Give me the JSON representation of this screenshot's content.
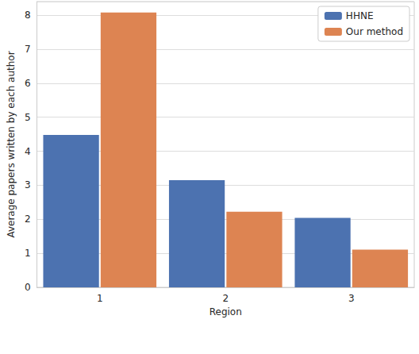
{
  "chart_data": {
    "type": "bar",
    "categories": [
      "1",
      "2",
      "3"
    ],
    "series": [
      {
        "name": "HHNE",
        "color": "#4c72b0",
        "values": [
          4.48,
          3.15,
          2.04
        ]
      },
      {
        "name": "Our method",
        "color": "#dd8452",
        "values": [
          8.08,
          2.22,
          1.11
        ]
      }
    ],
    "x_label": "Region",
    "y_label": "Average papers written by each author",
    "ylim": [
      0,
      8.4
    ],
    "yticks": [
      0,
      1,
      2,
      3,
      4,
      5,
      6,
      7,
      8
    ],
    "grid": true,
    "legend": "upper right"
  }
}
